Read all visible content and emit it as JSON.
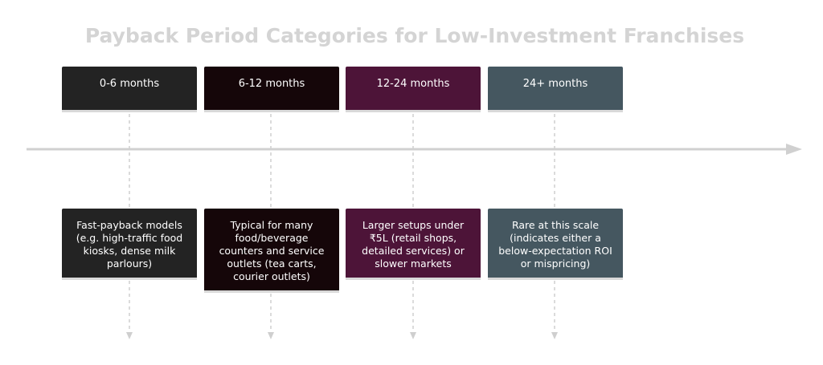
{
  "title": "Payback Period Categories for Low-Investment Franchises",
  "categories": [
    {
      "period": "0-6 months",
      "description": "Fast-payback models (e.g. high-traffic food kiosks, dense milk parlours)",
      "color": "#232323"
    },
    {
      "period": "6-12 months",
      "description": "Typical for many food/beverage counters and service outlets (tea carts, courier outlets)",
      "color": "#150609"
    },
    {
      "period": "12-24 months",
      "description": "Larger setups under ₹5L (retail shops, detailed services) or slower markets",
      "color": "#4d1438"
    },
    {
      "period": "24+ months",
      "description": "Rare at this scale (indicates either a below-expectation ROI or mispricing)",
      "color": "#455760"
    }
  ]
}
